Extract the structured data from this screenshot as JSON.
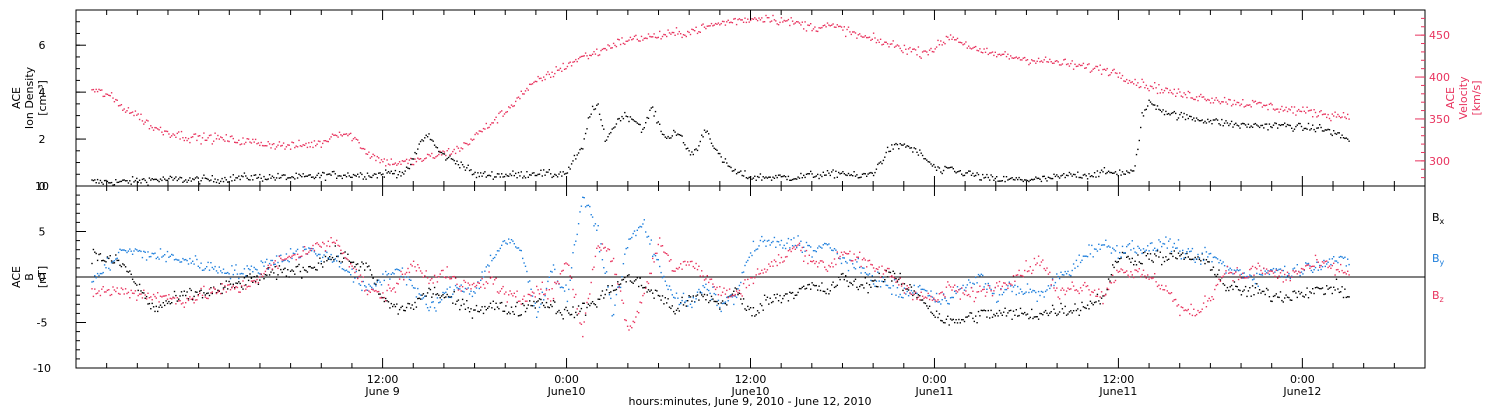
{
  "colors": {
    "black": "#000000",
    "pink": "#e8335e",
    "blue": "#1f7fdc"
  },
  "chart_data": [
    {
      "type": "scatter",
      "panel": "top",
      "ylabel_left": [
        "ACE",
        "Ion Density",
        "[cm⁻³]"
      ],
      "ylabel_right": [
        "ACE",
        "Velocity",
        "[km/s]"
      ],
      "ylim_left": [
        0,
        7.5
      ],
      "yticks_left": [
        "0",
        "2",
        "4",
        "6"
      ],
      "yticks_left_values": [
        0,
        2,
        4,
        6
      ],
      "ylim_right": [
        270,
        480
      ],
      "yticks_right": [
        "300",
        "350",
        "400",
        "450"
      ],
      "yticks_right_values": [
        300,
        350,
        400,
        450
      ],
      "time_unit": "hours from 00:00 June 9, 2010",
      "series": [
        {
          "axis": "left",
          "color": "#000000",
          "x": [
            -7,
            -5,
            -3,
            -1,
            1,
            3,
            5,
            7,
            8.5,
            9.5,
            10.5,
            11.5,
            12.5,
            13.5,
            14,
            14.5,
            15,
            15.5,
            16,
            17,
            18,
            19,
            20,
            21,
            22,
            23,
            24,
            24.5,
            25,
            25.5,
            26,
            26.5,
            27,
            27.5,
            28,
            28.5,
            29,
            29.5,
            30,
            30.5,
            31,
            31.5,
            32,
            32.5,
            33,
            34,
            35,
            36,
            37,
            38,
            39,
            40,
            41,
            42,
            43,
            44,
            45,
            46,
            47,
            48,
            48.5,
            49,
            49.5,
            50,
            51,
            52,
            53,
            54,
            55,
            56,
            57,
            58,
            59,
            60,
            61,
            61.5,
            62,
            63,
            64,
            65,
            66,
            67,
            68,
            69,
            70,
            71,
            72,
            73,
            74,
            75
          ],
          "y": [
            0.2,
            0.2,
            0.3,
            0.3,
            0.3,
            0.4,
            0.4,
            0.4,
            0.5,
            0.5,
            0.5,
            0.5,
            0.6,
            0.6,
            1.2,
            2.0,
            2.2,
            1.6,
            1.3,
            1.0,
            0.5,
            0.5,
            0.5,
            0.5,
            0.6,
            0.5,
            0.6,
            1.2,
            1.6,
            3.2,
            3.4,
            2.0,
            2.5,
            3.0,
            3.0,
            2.8,
            2.4,
            3.4,
            2.6,
            2.0,
            2.4,
            2.0,
            1.4,
            1.6,
            2.5,
            1.2,
            0.6,
            0.4,
            0.4,
            0.4,
            0.4,
            0.5,
            0.5,
            0.6,
            0.4,
            0.6,
            1.6,
            1.8,
            1.4,
            0.8,
            0.6,
            0.8,
            0.6,
            0.6,
            0.4,
            0.3,
            0.3,
            0.3,
            0.3,
            0.4,
            0.5,
            0.5,
            0.6,
            0.6,
            0.6,
            3.0,
            3.6,
            3.2,
            3.0,
            2.9,
            2.8,
            2.7,
            2.6,
            2.6,
            2.6,
            2.6,
            2.5,
            2.5,
            2.3,
            2.0
          ]
        },
        {
          "axis": "right",
          "color": "#e8335e",
          "x": [
            -7,
            -6,
            -5,
            -4,
            -3,
            -2,
            -1,
            0,
            1,
            2,
            3,
            4,
            5,
            6,
            7,
            8,
            9,
            10,
            11,
            12,
            13,
            14,
            15,
            16,
            17,
            18,
            19,
            20,
            21,
            22,
            23,
            24,
            25,
            26,
            27,
            28,
            29,
            30,
            31,
            32,
            33,
            34,
            35,
            36,
            37,
            38,
            39,
            40,
            41,
            42,
            43,
            44,
            45,
            46,
            47,
            48,
            49,
            50,
            51,
            52,
            53,
            54,
            55,
            56,
            57,
            58,
            59,
            60,
            61,
            62,
            63,
            64,
            65,
            66,
            67,
            68,
            69,
            70,
            71,
            72,
            73,
            74,
            75
          ],
          "y": [
            385,
            380,
            365,
            355,
            340,
            335,
            330,
            328,
            328,
            326,
            324,
            322,
            320,
            318,
            320,
            322,
            335,
            330,
            310,
            300,
            298,
            300,
            305,
            310,
            315,
            330,
            345,
            360,
            380,
            395,
            405,
            415,
            425,
            430,
            440,
            445,
            448,
            450,
            452,
            455,
            460,
            465,
            468,
            470,
            472,
            468,
            465,
            460,
            462,
            458,
            450,
            445,
            440,
            435,
            430,
            435,
            450,
            440,
            430,
            428,
            425,
            422,
            420,
            418,
            415,
            412,
            410,
            405,
            395,
            390,
            385,
            380,
            378,
            375,
            372,
            370,
            368,
            365,
            362,
            360,
            358,
            355,
            355
          ]
        }
      ]
    },
    {
      "type": "scatter",
      "panel": "bottom",
      "ylabel_left": [
        "ACE",
        "B",
        "[nT]"
      ],
      "ylim": [
        -10,
        10
      ],
      "yticks": [
        "-10",
        "-5",
        "0",
        "5",
        "10"
      ],
      "yticks_values": [
        -10,
        -5,
        0,
        5,
        10
      ],
      "zero_line": true,
      "time_unit": "hours from 00:00 June 9, 2010",
      "legend_placement": "right",
      "series": [
        {
          "name": "B",
          "sub": "x",
          "color": "#000000",
          "x": [
            -7,
            -5,
            -3,
            -1,
            1,
            3,
            5,
            7,
            9,
            11,
            12,
            13,
            14,
            15,
            16,
            17,
            18,
            19,
            20,
            21,
            22,
            23,
            24,
            25,
            26,
            27,
            28,
            29,
            30,
            31,
            32,
            33,
            34,
            35,
            36,
            37,
            38,
            39,
            40,
            41,
            42,
            43,
            44,
            45,
            46,
            47,
            48,
            49,
            50,
            51,
            52,
            53,
            54,
            55,
            56,
            57,
            58,
            59,
            60,
            61,
            62,
            63,
            64,
            65,
            66,
            67,
            68,
            69,
            70,
            71,
            72,
            73,
            74,
            75
          ],
          "y": [
            2.5,
            1.5,
            -3.5,
            -2,
            -1.5,
            -0.5,
            0.5,
            1,
            2.5,
            1,
            -2.5,
            -3.5,
            -3,
            -1.5,
            -2,
            -3,
            -3.5,
            -3,
            -3.5,
            -3.5,
            -2.5,
            -3,
            -4,
            -3.5,
            -2.5,
            -1,
            0,
            -1,
            -2,
            -3.5,
            -2.5,
            -2,
            -3,
            -1.5,
            -4,
            -2.5,
            -2,
            -1.5,
            -1,
            -1.5,
            0,
            -1,
            -0.5,
            0.5,
            -1,
            -2,
            -4,
            -5,
            -4.5,
            -4,
            -4,
            -4,
            -4,
            -4,
            -3.5,
            -3.5,
            -3,
            -2,
            2.5,
            2,
            2.5,
            2,
            2.5,
            2,
            1.5,
            -1,
            -1.5,
            -1.5,
            -2,
            -2,
            -1.5,
            -1.5,
            -1,
            -2
          ]
        },
        {
          "name": "B",
          "sub": "y",
          "color": "#1f7fdc",
          "x": [
            -7,
            -5,
            -3,
            -1,
            1,
            3,
            5,
            7,
            9,
            11,
            12,
            13,
            14,
            15,
            16,
            17,
            18,
            19,
            20,
            21,
            22,
            23,
            24,
            25,
            26,
            27,
            28,
            29,
            30,
            31,
            32,
            33,
            34,
            35,
            36,
            37,
            38,
            39,
            40,
            41,
            42,
            43,
            44,
            45,
            46,
            47,
            48,
            49,
            50,
            51,
            52,
            53,
            54,
            55,
            56,
            57,
            58,
            59,
            60,
            61,
            62,
            63,
            64,
            65,
            66,
            67,
            68,
            69,
            70,
            71,
            72,
            73,
            74,
            75
          ],
          "y": [
            -0.5,
            3,
            2.5,
            2,
            1,
            0.5,
            2,
            3,
            2,
            -1.5,
            0,
            1,
            -1,
            -3.5,
            -2,
            -1,
            -1.5,
            2,
            4,
            3,
            -4,
            1,
            -2,
            9,
            5,
            -4,
            4,
            6,
            1,
            -2,
            -3,
            -1,
            -3,
            -2,
            3,
            4,
            3.5,
            4,
            3,
            3.5,
            2,
            1,
            0,
            -1,
            -2,
            -1,
            -2.5,
            -2,
            -1,
            0,
            -2,
            -1,
            -1.5,
            -2,
            0,
            1,
            3,
            3.5,
            3,
            3.5,
            3,
            4,
            3,
            2,
            2.5,
            1,
            0.5,
            0,
            1,
            0.5,
            1,
            1.5,
            2,
            1.5
          ]
        },
        {
          "name": "B",
          "sub": "z",
          "color": "#e8335e",
          "x": [
            -7,
            -5,
            -3,
            -1,
            1,
            3,
            5,
            7,
            9,
            11,
            12,
            13,
            14,
            15,
            16,
            17,
            18,
            19,
            20,
            21,
            22,
            23,
            24,
            25,
            26,
            27,
            28,
            29,
            30,
            31,
            32,
            33,
            34,
            35,
            36,
            37,
            38,
            39,
            40,
            41,
            42,
            43,
            44,
            45,
            46,
            47,
            48,
            49,
            50,
            51,
            52,
            53,
            54,
            55,
            56,
            57,
            58,
            59,
            60,
            61,
            62,
            63,
            64,
            65,
            66,
            67,
            68,
            69,
            70,
            71,
            72,
            73,
            74,
            75
          ],
          "y": [
            -1.5,
            -1.5,
            -2,
            -2.5,
            -1.5,
            -1,
            1.5,
            3,
            4,
            -1.5,
            -2,
            -0.5,
            1.5,
            0,
            0.5,
            -1,
            -1,
            0,
            -2,
            -2.5,
            -1,
            -2,
            2,
            -6,
            4,
            2,
            -6,
            -2,
            4,
            1,
            2,
            0,
            -1.5,
            -2,
            0,
            1,
            2,
            3.5,
            2,
            1,
            3,
            2,
            1,
            0.5,
            -1,
            -2,
            -2.5,
            -1,
            -2,
            -1.5,
            -1,
            0,
            1,
            2,
            -2,
            -1,
            -1,
            -2,
            1,
            0.5,
            0,
            -1,
            -3.5,
            -4,
            -2,
            1,
            0,
            1,
            0.5,
            0,
            1,
            1.5,
            1,
            0.5
          ]
        }
      ]
    }
  ],
  "x_axis": {
    "xlim": [
      -8,
      80
    ],
    "major_ticks": [
      12,
      24,
      36,
      48,
      60,
      72
    ],
    "minor_step": 2,
    "tick_labels": [
      {
        "x": 12,
        "time": "12:00",
        "day": "June 9"
      },
      {
        "x": 24,
        "time": "0:00",
        "day": "June10"
      },
      {
        "x": 36,
        "time": "12:00",
        "day": "June10"
      },
      {
        "x": 48,
        "time": "0:00",
        "day": "June11"
      },
      {
        "x": 60,
        "time": "12:00",
        "day": "June11"
      },
      {
        "x": 72,
        "time": "0:00",
        "day": "June12"
      }
    ],
    "xlabel": "hours:minutes, June  9, 2010 - June 12, 2010"
  }
}
